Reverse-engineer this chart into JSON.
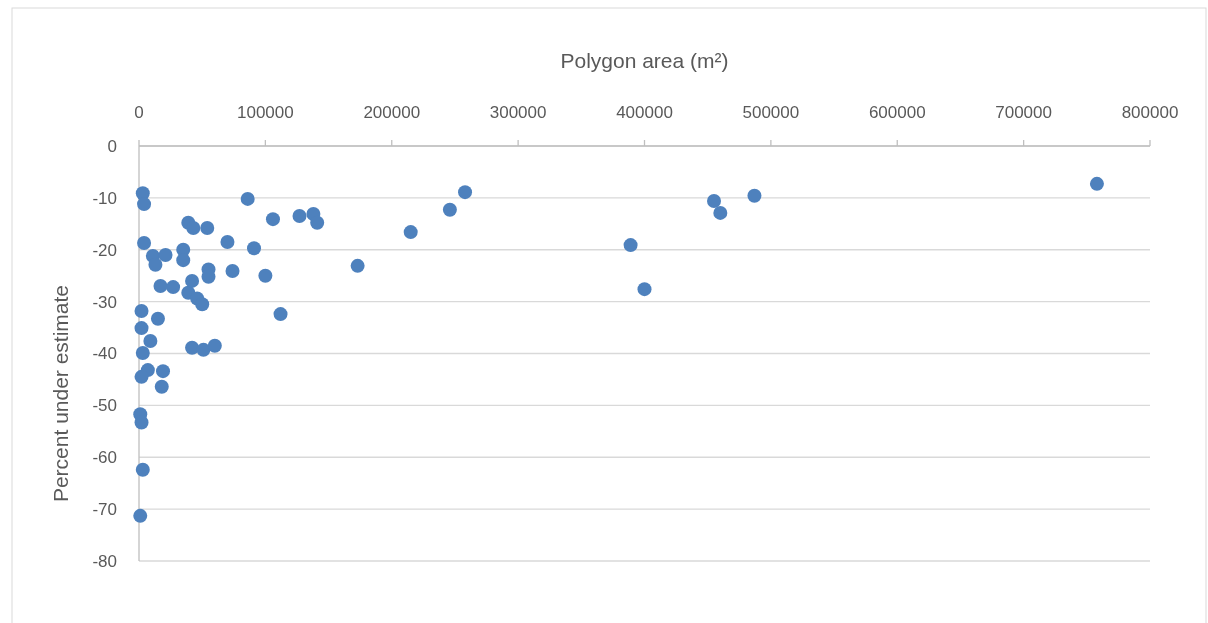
{
  "chart_data": {
    "type": "scatter",
    "xlabel": "Polygon area (m²)",
    "ylabel": "Percent under estimate",
    "xlim": [
      0,
      800000
    ],
    "xticks": [
      0,
      100000,
      200000,
      300000,
      400000,
      500000,
      600000,
      700000,
      800000
    ],
    "ylim": [
      -80,
      0
    ],
    "yticks": [
      -80,
      -70,
      -60,
      -50,
      -40,
      -30,
      -20,
      -10,
      0
    ],
    "grid": "y",
    "marker": "circle",
    "series": [
      {
        "color": "#4e81bd",
        "x": [
          3000,
          4000,
          4000,
          2000,
          2000,
          3000,
          9000,
          7000,
          2000,
          1000,
          2000,
          3000,
          1000,
          11000,
          13000,
          21000,
          15000,
          19000,
          18000,
          17000,
          27000,
          39000,
          43000,
          54000,
          35000,
          35000,
          39000,
          42000,
          46000,
          50000,
          42000,
          51000,
          60000,
          55000,
          55000,
          70000,
          74000,
          86000,
          91000,
          100000,
          106000,
          112000,
          127000,
          138000,
          141000,
          173000,
          215000,
          246000,
          258000,
          389000,
          400000,
          455000,
          460000,
          487000,
          758000
        ],
        "values": [
          -9.1,
          -11.2,
          -18.7,
          -31.8,
          -35.1,
          -39.9,
          -37.6,
          -43.2,
          -44.5,
          -51.7,
          -53.3,
          -62.4,
          -71.3,
          -21.2,
          -22.9,
          -21.0,
          -33.3,
          -43.4,
          -46.4,
          -27.0,
          -27.2,
          -14.8,
          -15.8,
          -15.8,
          -20.0,
          -22.0,
          -28.3,
          -26.0,
          -29.4,
          -30.5,
          -38.9,
          -39.3,
          -38.5,
          -23.8,
          -25.2,
          -18.5,
          -24.1,
          -10.2,
          -19.7,
          -25.0,
          -14.1,
          -32.4,
          -13.5,
          -13.1,
          -14.8,
          -23.1,
          -16.6,
          -12.3,
          -8.9,
          -19.1,
          -27.6,
          -10.6,
          -12.9,
          -9.6,
          -7.3
        ]
      }
    ]
  }
}
